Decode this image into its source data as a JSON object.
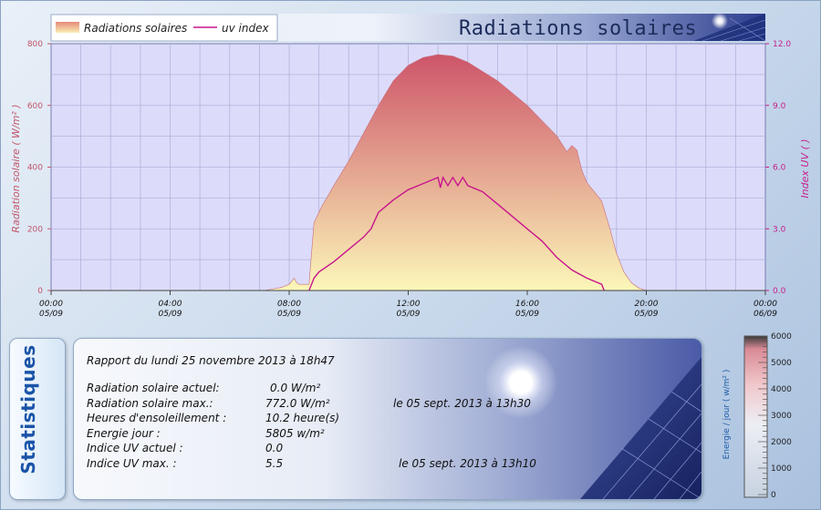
{
  "header": {
    "title": "Radiations solaires",
    "legend": [
      "Radiations solaires",
      "uv index"
    ]
  },
  "colors": {
    "plot_bg": "#dcdcfa",
    "radiation_top": "#cd5569",
    "radiation_bottom": "#fcf7b9",
    "uv_line": "#c8168c",
    "left_axis": "#c2566a",
    "right_axis": "#c81e8c"
  },
  "chart_data": {
    "type": "area",
    "title": "Radiations solaires",
    "x_tick_labels": [
      [
        "00:00",
        "05/09"
      ],
      [
        "04:00",
        "05/09"
      ],
      [
        "08:00",
        "05/09"
      ],
      [
        "12:00",
        "05/09"
      ],
      [
        "16:00",
        "05/09"
      ],
      [
        "20:00",
        "05/09"
      ],
      [
        "00:00",
        "06/09"
      ]
    ],
    "xlim": [
      "2013-09-05 00:00",
      "2013-09-06 00:00"
    ],
    "y_left": {
      "label": "Radiation solaire ( W/m² )",
      "lim": [
        0,
        800
      ],
      "ticks": [
        "0",
        "200",
        "400",
        "600",
        "800"
      ]
    },
    "y_right": {
      "label": "Index UV ( )",
      "lim": [
        0,
        12
      ],
      "ticks": [
        "0.0",
        "3.0",
        "6.0",
        "9.0",
        "12.0"
      ]
    },
    "grid": true,
    "legend_position": "top-left",
    "series": [
      {
        "name": "Radiations solaires",
        "axis": "left",
        "kind": "area",
        "x": [
          "07:10",
          "07:45",
          "08:00",
          "08:10",
          "08:15",
          "08:20",
          "08:40",
          "08:50",
          "09:05",
          "09:30",
          "10:00",
          "10:30",
          "11:00",
          "11:30",
          "12:00",
          "12:30",
          "13:00",
          "13:30",
          "14:00",
          "14:30",
          "15:00",
          "15:30",
          "16:00",
          "16:30",
          "17:00",
          "17:20",
          "17:30",
          "17:40",
          "17:50",
          "18:00",
          "18:30",
          "18:45",
          "19:00",
          "19:15",
          "19:30",
          "19:45",
          "20:00"
        ],
        "y": [
          0,
          10,
          20,
          40,
          25,
          20,
          20,
          220,
          270,
          340,
          420,
          510,
          600,
          680,
          730,
          755,
          765,
          760,
          740,
          710,
          680,
          640,
          600,
          550,
          500,
          450,
          470,
          455,
          390,
          350,
          290,
          210,
          120,
          60,
          25,
          8,
          0
        ]
      },
      {
        "name": "uv index",
        "axis": "right",
        "kind": "line",
        "x": [
          "08:40",
          "08:50",
          "09:00",
          "09:30",
          "10:00",
          "10:30",
          "10:45",
          "11:00",
          "11:30",
          "12:00",
          "12:30",
          "13:00",
          "13:05",
          "13:10",
          "13:20",
          "13:30",
          "13:40",
          "13:50",
          "14:00",
          "14:30",
          "15:00",
          "15:30",
          "16:00",
          "16:30",
          "17:00",
          "17:30",
          "18:00",
          "18:30",
          "18:35"
        ],
        "y": [
          0,
          0.6,
          0.9,
          1.4,
          2.0,
          2.6,
          3.0,
          3.8,
          4.4,
          4.9,
          5.2,
          5.5,
          5.0,
          5.5,
          5.1,
          5.5,
          5.1,
          5.5,
          5.1,
          4.8,
          4.2,
          3.6,
          3.0,
          2.4,
          1.6,
          1.0,
          0.6,
          0.3,
          0
        ]
      }
    ]
  },
  "stats": {
    "tab_title": "Statistiques",
    "report": "Rapport du lundi 25 novembre 2013 à 18h47",
    "rows": [
      {
        "label": "Radiation solaire actuel:",
        "value": "0.0 W/m²",
        "date": ""
      },
      {
        "label": "Radiation solaire max.:",
        "value": "772.0 W/m²",
        "date": "le 05 sept. 2013 à 13h30"
      },
      {
        "label": "Heures d'ensoleillement :",
        "value": "10.2 heure(s)",
        "date": ""
      },
      {
        "label": "Energie jour :",
        "value": "5805 w/m²",
        "date": ""
      },
      {
        "label": "Indice UV actuel :",
        "value": "0.0",
        "date": ""
      },
      {
        "label": "Indice UV max. :",
        "value": "5.5",
        "date": "le 05 sept. 2013 à 13h10"
      }
    ]
  },
  "gauge": {
    "title": "Energie / jour ( w/m² )",
    "ticks": [
      "0",
      "1000",
      "2000",
      "3000",
      "4000",
      "5000",
      "6000"
    ],
    "max": 6000,
    "value": 0
  }
}
